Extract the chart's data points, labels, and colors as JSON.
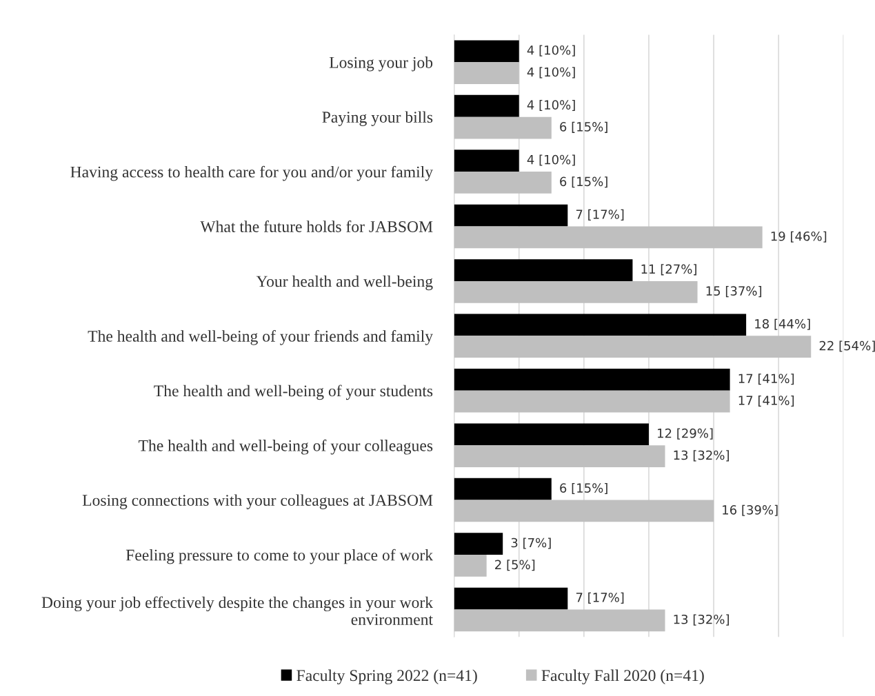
{
  "chart_data": {
    "type": "bar",
    "orientation": "horizontal",
    "categories": [
      "Losing your job",
      "Paying your bills",
      "Having access to health care for you and/or your family",
      "What the future holds for JABSOM",
      "Your health and well-being",
      "The health and well-being of your friends and family",
      "The health and well-being of your students",
      "The health and well-being of your colleagues",
      "Losing connections with your colleagues at JABSOM",
      "Feeling pressure to come to your place of work",
      "Doing your job effectively despite the changes in your work environment"
    ],
    "series": [
      {
        "name": "Faculty Spring 2022 (n=41)",
        "color": "#000000",
        "values": [
          4,
          4,
          4,
          7,
          11,
          18,
          17,
          12,
          6,
          3,
          7
        ],
        "value_labels": [
          "4 [10%]",
          "4 [10%]",
          "4 [10%]",
          "7 [17%]",
          "11 [27%]",
          "18 [44%]",
          "17 [41%]",
          "12 [29%]",
          "6 [15%]",
          "3 [7%]",
          "7 [17%]"
        ]
      },
      {
        "name": "Faculty Fall 2020 (n=41)",
        "color": "#bfbfbf",
        "values": [
          4,
          6,
          6,
          19,
          15,
          22,
          17,
          13,
          16,
          2,
          13
        ],
        "value_labels": [
          "4 [10%]",
          "6 [15%]",
          "6 [15%]",
          "19 [46%]",
          "15 [37%]",
          "22 [54%]",
          "17 [41%]",
          "13 [32%]",
          "16 [39%]",
          "2 [5%]",
          "13 [32%]"
        ]
      }
    ],
    "xlim": [
      0,
      24
    ],
    "xticks": [
      {
        "value": 0,
        "label": null
      },
      {
        "value": 4,
        "label": null
      },
      {
        "value": 8,
        "label": null
      },
      {
        "value": 12,
        "label": null
      },
      {
        "value": 16,
        "label": null
      },
      {
        "value": 20,
        "label": null
      },
      {
        "value": 24,
        "label": null
      }
    ],
    "grid": "x",
    "legend": "bottom",
    "tick_labels": "y"
  }
}
